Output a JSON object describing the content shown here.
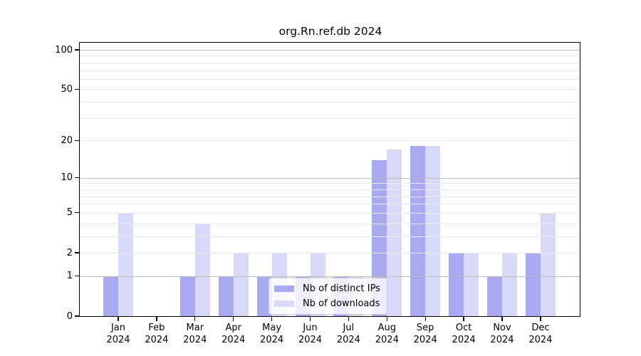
{
  "title": "org.Rn.ref.db 2024",
  "chart_data": {
    "type": "bar",
    "categories": [
      "Jan",
      "Feb",
      "Mar",
      "Apr",
      "May",
      "Jun",
      "Jul",
      "Aug",
      "Sep",
      "Oct",
      "Nov",
      "Dec"
    ],
    "year_label": "2024",
    "series": [
      {
        "name": "Nb of distinct IPs",
        "color": "#a9a9f1",
        "values": [
          1,
          0,
          1,
          1,
          1,
          1,
          1,
          14,
          18,
          2,
          1,
          2
        ]
      },
      {
        "name": "Nb of downloads",
        "color": "#d8d8f8",
        "values": [
          5,
          0,
          4,
          2,
          2,
          2,
          1,
          17,
          18,
          2,
          2,
          5
        ]
      }
    ],
    "yscale": "log1p",
    "ylim": [
      0,
      113
    ],
    "yticks": [
      0,
      1,
      2,
      5,
      10,
      20,
      50,
      100
    ],
    "major_gridlines": [
      1,
      10,
      100
    ],
    "minor_gridlines": [
      2,
      3,
      4,
      5,
      6,
      7,
      8,
      9,
      20,
      30,
      40,
      50,
      60,
      70,
      80,
      90
    ],
    "grid": true,
    "legend_position": "lower-center"
  },
  "colors": {
    "background": "#ffffff",
    "axis": "#000000",
    "major_grid": "#bdbdbd",
    "minor_grid": "#e8e8e8",
    "legend_border": "#cccccc"
  }
}
